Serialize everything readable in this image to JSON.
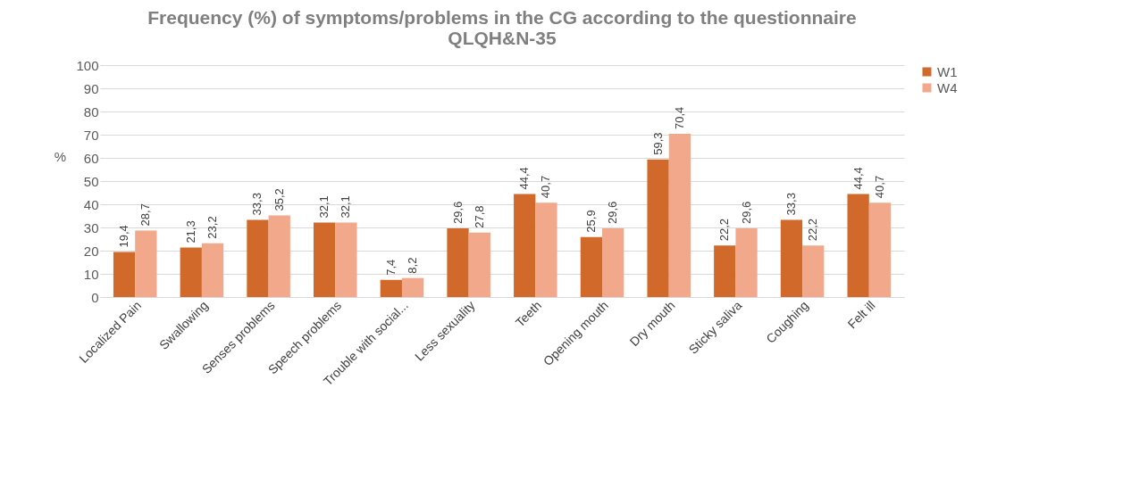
{
  "chart_data": {
    "type": "bar",
    "title": "Frequency (%) of symptoms/problems in the CG according to the questionnaire QLQH&N-35",
    "ylabel": "%",
    "categories": [
      "Localized Pain",
      "Swallowing",
      "Senses problems",
      "Speech problems",
      "Trouble with social...",
      "Less sexuality",
      "Teeth",
      "Opening mouth",
      "Dry mouth",
      "Sticky saliva",
      "Coughing",
      "Felt ill"
    ],
    "series": [
      {
        "name": "W1",
        "color": "#d0692a",
        "values": [
          19.4,
          21.3,
          33.3,
          32.1,
          7.4,
          29.6,
          44.4,
          25.9,
          59.3,
          22.2,
          33.3,
          44.4
        ],
        "value_labels": [
          "19,4",
          "21,3",
          "33,3",
          "32,1",
          "7,4",
          "29,6",
          "44,4",
          "25,9",
          "59,3",
          "22,2",
          "33,3",
          "44,4"
        ]
      },
      {
        "name": "W4",
        "color": "#f2a88a",
        "values": [
          28.7,
          23.2,
          35.2,
          32.1,
          8.2,
          27.8,
          40.7,
          29.6,
          70.4,
          29.6,
          22.2,
          40.7
        ],
        "value_labels": [
          "28,7",
          "23,2",
          "35,2",
          "32,1",
          "8,2",
          "27,8",
          "40,7",
          "29,6",
          "70,4",
          "29,6",
          "22,2",
          "40,7"
        ]
      }
    ],
    "ylim": [
      0,
      100
    ],
    "yticks": [
      0,
      10,
      20,
      30,
      40,
      50,
      60,
      70,
      80,
      90,
      100
    ],
    "grid": "y",
    "legend": "right"
  }
}
